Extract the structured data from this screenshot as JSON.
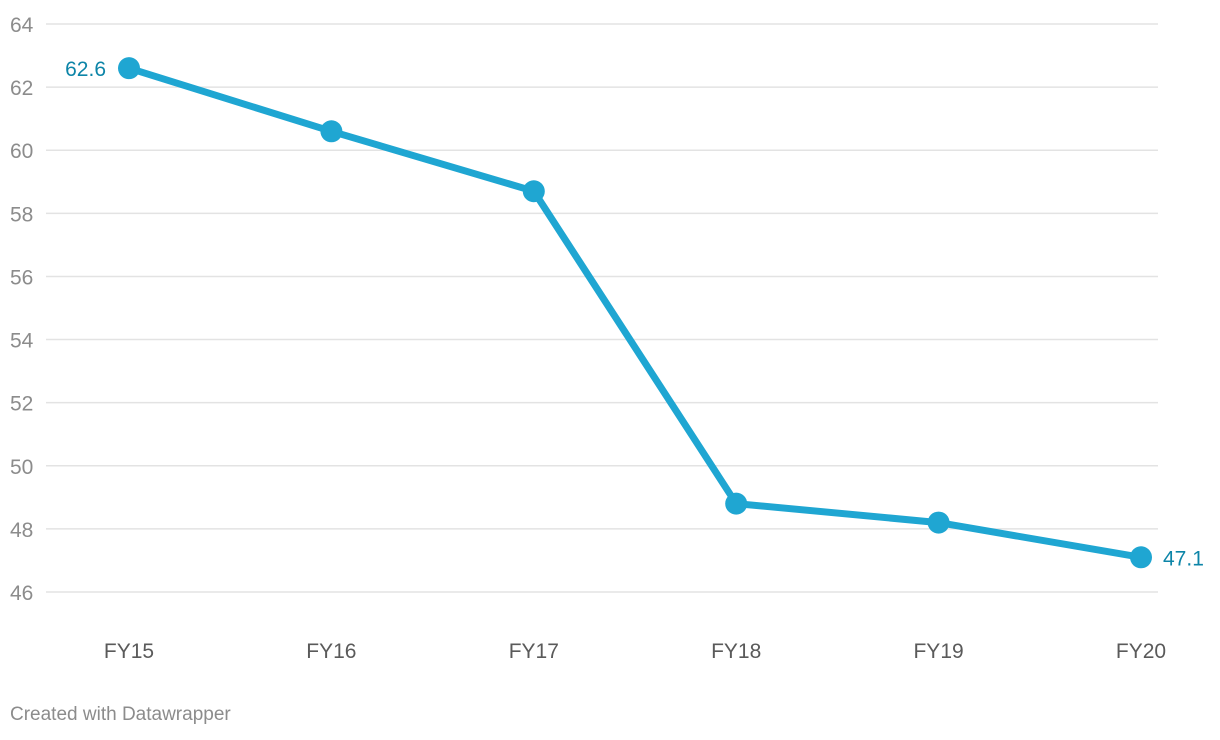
{
  "chart_data": {
    "type": "line",
    "categories": [
      "FY15",
      "FY16",
      "FY17",
      "FY18",
      "FY19",
      "FY20"
    ],
    "series": [
      {
        "values": [
          62.6,
          60.6,
          58.7,
          48.8,
          48.2,
          47.1
        ],
        "color": "#1fa6d2"
      }
    ],
    "ylim": [
      46,
      64
    ],
    "yticks": [
      46,
      48,
      50,
      52,
      54,
      56,
      58,
      60,
      62,
      64
    ],
    "grid": true,
    "data_labels": [
      {
        "index": 0,
        "text": "62.6"
      },
      {
        "index": 5,
        "text": "47.1"
      }
    ],
    "label_color": "#0d85a8",
    "title": "",
    "xlabel": "",
    "ylabel": ""
  },
  "footer": {
    "credit": "Created with Datawrapper"
  }
}
